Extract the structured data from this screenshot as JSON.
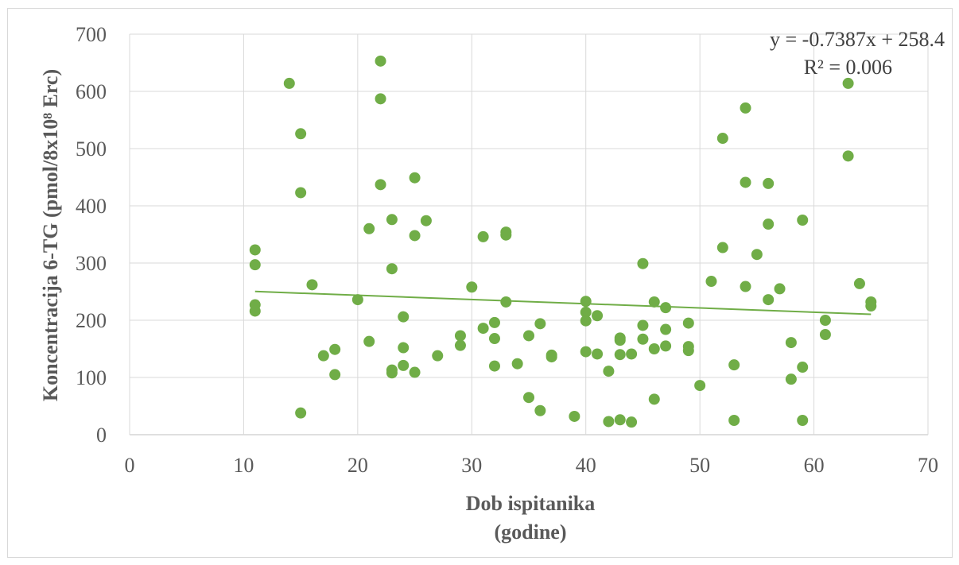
{
  "chart_data": {
    "type": "scatter",
    "xlabel_lines": [
      "Dob ispitanika",
      "(godine)"
    ],
    "ylabel": "Koncentracija 6-TG (pmol/8x10⁸ Erc)",
    "xlim": [
      0,
      70
    ],
    "ylim": [
      0,
      700
    ],
    "x_ticks": [
      0,
      10,
      20,
      30,
      40,
      50,
      60,
      70
    ],
    "y_ticks": [
      0,
      100,
      200,
      300,
      400,
      500,
      600,
      700
    ],
    "grid": true,
    "marker_color": "#70AD47",
    "trendline": {
      "type": "linear",
      "slope": -0.7387,
      "intercept": 258.4,
      "x_range": [
        11,
        65
      ],
      "color": "#70AD47",
      "equation_label": "y = -0.7387x + 258.4",
      "r2_label": "R² = 0.006"
    },
    "points": [
      [
        11,
        323
      ],
      [
        11,
        297
      ],
      [
        11,
        227
      ],
      [
        11,
        216
      ],
      [
        14,
        614
      ],
      [
        15,
        526
      ],
      [
        15,
        423
      ],
      [
        15,
        38
      ],
      [
        16,
        262
      ],
      [
        17,
        138
      ],
      [
        18,
        149
      ],
      [
        18,
        105
      ],
      [
        20,
        236
      ],
      [
        21,
        360
      ],
      [
        21,
        163
      ],
      [
        22,
        653
      ],
      [
        22,
        587
      ],
      [
        22,
        437
      ],
      [
        23,
        376
      ],
      [
        23,
        290
      ],
      [
        23,
        113
      ],
      [
        23,
        108
      ],
      [
        24,
        206
      ],
      [
        24,
        152
      ],
      [
        24,
        121
      ],
      [
        25,
        449
      ],
      [
        25,
        348
      ],
      [
        25,
        109
      ],
      [
        26,
        374
      ],
      [
        27,
        138
      ],
      [
        29,
        173
      ],
      [
        29,
        156
      ],
      [
        30,
        258
      ],
      [
        31,
        346
      ],
      [
        31,
        186
      ],
      [
        32,
        196
      ],
      [
        32,
        168
      ],
      [
        32,
        120
      ],
      [
        33,
        354
      ],
      [
        33,
        349
      ],
      [
        33,
        232
      ],
      [
        34,
        124
      ],
      [
        35,
        173
      ],
      [
        35,
        65
      ],
      [
        36,
        194
      ],
      [
        36,
        42
      ],
      [
        37,
        139
      ],
      [
        37,
        136
      ],
      [
        39,
        32
      ],
      [
        40,
        233
      ],
      [
        40,
        214
      ],
      [
        40,
        199
      ],
      [
        40,
        145
      ],
      [
        41,
        208
      ],
      [
        41,
        141
      ],
      [
        42,
        111
      ],
      [
        42,
        23
      ],
      [
        43,
        169
      ],
      [
        43,
        165
      ],
      [
        43,
        140
      ],
      [
        43,
        26
      ],
      [
        44,
        141
      ],
      [
        44,
        22
      ],
      [
        45,
        299
      ],
      [
        45,
        191
      ],
      [
        45,
        167
      ],
      [
        46,
        232
      ],
      [
        46,
        150
      ],
      [
        46,
        62
      ],
      [
        47,
        222
      ],
      [
        47,
        184
      ],
      [
        47,
        155
      ],
      [
        49,
        195
      ],
      [
        49,
        154
      ],
      [
        49,
        147
      ],
      [
        50,
        86
      ],
      [
        51,
        268
      ],
      [
        52,
        518
      ],
      [
        52,
        327
      ],
      [
        53,
        122
      ],
      [
        53,
        25
      ],
      [
        54,
        571
      ],
      [
        54,
        441
      ],
      [
        54,
        259
      ],
      [
        55,
        315
      ],
      [
        56,
        439
      ],
      [
        56,
        368
      ],
      [
        56,
        236
      ],
      [
        57,
        255
      ],
      [
        58,
        161
      ],
      [
        58,
        97
      ],
      [
        59,
        375
      ],
      [
        59,
        118
      ],
      [
        59,
        25
      ],
      [
        61,
        200
      ],
      [
        61,
        175
      ],
      [
        63,
        614
      ],
      [
        63,
        487
      ],
      [
        64,
        264
      ],
      [
        65,
        232
      ],
      [
        65,
        225
      ]
    ]
  }
}
